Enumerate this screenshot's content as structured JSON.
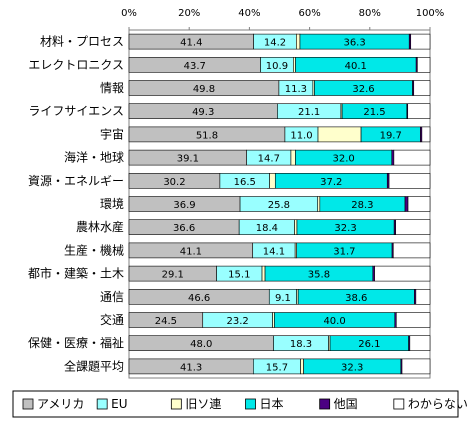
{
  "chart_data": {
    "type": "bar",
    "orientation": "horizontal",
    "stacked": "percent",
    "xlim": [
      0,
      100
    ],
    "ticks": [
      "0%",
      "20%",
      "40%",
      "60%",
      "80%",
      "100%"
    ],
    "categories": [
      "材料・プロセス",
      "エレクトロニクス",
      "情報",
      "ライフサイエンス",
      "宇宙",
      "海洋・地球",
      "資源・エネルギー",
      "環境",
      "農林水産",
      "生産・機械",
      "都市・建築・土木",
      "通信",
      "交通",
      "保健・医療・福祉",
      "全課題平均"
    ],
    "series": [
      {
        "name": "アメリカ",
        "color": "#c0c0c0",
        "values": [
          41.4,
          43.7,
          49.8,
          49.3,
          51.8,
          39.1,
          30.2,
          36.9,
          36.6,
          41.1,
          29.1,
          46.6,
          24.5,
          48.0,
          41.3
        ]
      },
      {
        "name": "EU",
        "color": "#99ffff",
        "values": [
          14.2,
          10.9,
          11.3,
          21.1,
          11.0,
          14.7,
          16.5,
          25.8,
          18.4,
          14.1,
          15.1,
          9.1,
          23.2,
          18.3,
          15.7
        ]
      },
      {
        "name": "旧ソ連",
        "color": "#ffffcc",
        "values": [
          1.2,
          0.7,
          0.5,
          0.4,
          14.3,
          1.5,
          1.9,
          0.7,
          0.8,
          0.5,
          1.0,
          0.5,
          0.6,
          0.5,
          1.0
        ]
      },
      {
        "name": "日本",
        "color": "#00e8e8",
        "values": [
          36.3,
          40.1,
          32.6,
          21.5,
          19.7,
          32.0,
          37.2,
          28.3,
          32.3,
          31.7,
          35.8,
          38.6,
          40.0,
          26.1,
          32.3
        ]
      },
      {
        "name": "他国",
        "color": "#4b0082",
        "values": [
          0.5,
          0.4,
          0.4,
          0.3,
          0.5,
          0.7,
          0.6,
          1.0,
          0.5,
          0.4,
          0.6,
          0.5,
          0.5,
          0.4,
          0.4
        ]
      },
      {
        "name": "わからない",
        "color": "#ffffff",
        "values": [
          6.4,
          4.2,
          5.4,
          7.4,
          2.7,
          12.0,
          13.6,
          7.3,
          11.4,
          12.2,
          18.4,
          4.7,
          11.2,
          6.7,
          9.3
        ]
      }
    ],
    "labeled_series": [
      0,
      1,
      3
    ],
    "legend_position": "bottom",
    "grid": false
  }
}
